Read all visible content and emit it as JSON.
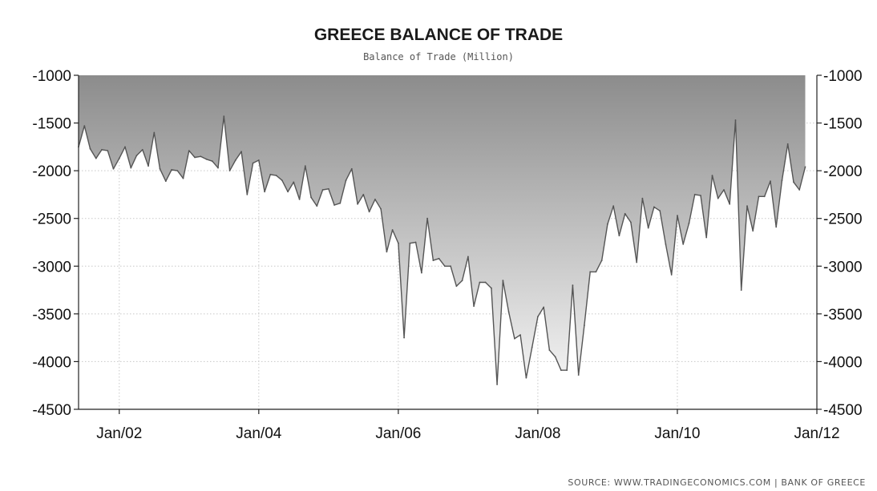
{
  "chart_data": {
    "type": "area",
    "title": "GREECE BALANCE OF TRADE",
    "subtitle": "Balance of Trade (Million)",
    "source": "SOURCE: WWW.TRADINGECONOMICS.COM | BANK OF GREECE",
    "xlabel": "",
    "ylabel": "",
    "ylim": [
      -4500,
      -1000
    ],
    "xlim": [
      "2001-06",
      "2012-01"
    ],
    "x_tick_labels": [
      "Jan/02",
      "Jan/04",
      "Jan/06",
      "Jan/08",
      "Jan/10",
      "Jan/12"
    ],
    "y_tick_values": [
      -1000,
      -1500,
      -2000,
      -2500,
      -3000,
      -3500,
      -4000,
      -4500
    ],
    "grid": true,
    "fill_colors": {
      "top": "#8c8c8c",
      "bottom": "#f4f4f4"
    },
    "line_color": "#555555",
    "series": [
      {
        "points": [
          [
            "2001-06",
            -1750
          ],
          [
            "2001-07",
            -1530
          ],
          [
            "2001-08",
            -1770
          ],
          [
            "2001-09",
            -1870
          ],
          [
            "2001-10",
            -1780
          ],
          [
            "2001-11",
            -1790
          ],
          [
            "2001-12",
            -1980
          ],
          [
            "2002-01",
            -1870
          ],
          [
            "2002-02",
            -1750
          ],
          [
            "2002-03",
            -1970
          ],
          [
            "2002-04",
            -1840
          ],
          [
            "2002-05",
            -1780
          ],
          [
            "2002-06",
            -1950
          ],
          [
            "2002-07",
            -1600
          ],
          [
            "2002-08",
            -1980
          ],
          [
            "2002-09",
            -2110
          ],
          [
            "2002-10",
            -1990
          ],
          [
            "2002-11",
            -2000
          ],
          [
            "2002-12",
            -2080
          ],
          [
            "2003-01",
            -1790
          ],
          [
            "2003-02",
            -1860
          ],
          [
            "2003-03",
            -1850
          ],
          [
            "2003-04",
            -1880
          ],
          [
            "2003-05",
            -1900
          ],
          [
            "2003-06",
            -1970
          ],
          [
            "2003-07",
            -1430
          ],
          [
            "2003-08",
            -2000
          ],
          [
            "2003-09",
            -1890
          ],
          [
            "2003-10",
            -1800
          ],
          [
            "2003-11",
            -2250
          ],
          [
            "2003-12",
            -1920
          ],
          [
            "2004-01",
            -1890
          ],
          [
            "2004-02",
            -2220
          ],
          [
            "2004-03",
            -2040
          ],
          [
            "2004-04",
            -2050
          ],
          [
            "2004-05",
            -2100
          ],
          [
            "2004-06",
            -2220
          ],
          [
            "2004-07",
            -2120
          ],
          [
            "2004-08",
            -2300
          ],
          [
            "2004-09",
            -1950
          ],
          [
            "2004-10",
            -2280
          ],
          [
            "2004-11",
            -2370
          ],
          [
            "2004-12",
            -2200
          ],
          [
            "2005-01",
            -2190
          ],
          [
            "2005-02",
            -2360
          ],
          [
            "2005-03",
            -2340
          ],
          [
            "2005-04",
            -2100
          ],
          [
            "2005-05",
            -1980
          ],
          [
            "2005-06",
            -2350
          ],
          [
            "2005-07",
            -2250
          ],
          [
            "2005-08",
            -2430
          ],
          [
            "2005-09",
            -2300
          ],
          [
            "2005-10",
            -2400
          ],
          [
            "2005-11",
            -2850
          ],
          [
            "2005-12",
            -2620
          ],
          [
            "2006-01",
            -2760
          ],
          [
            "2006-02",
            -3750
          ],
          [
            "2006-03",
            -2760
          ],
          [
            "2006-04",
            -2750
          ],
          [
            "2006-05",
            -3070
          ],
          [
            "2006-06",
            -2500
          ],
          [
            "2006-07",
            -2940
          ],
          [
            "2006-08",
            -2920
          ],
          [
            "2006-09",
            -3000
          ],
          [
            "2006-10",
            -3000
          ],
          [
            "2006-11",
            -3210
          ],
          [
            "2006-12",
            -3150
          ],
          [
            "2007-01",
            -2900
          ],
          [
            "2007-02",
            -3420
          ],
          [
            "2007-03",
            -3170
          ],
          [
            "2007-04",
            -3170
          ],
          [
            "2007-05",
            -3230
          ],
          [
            "2007-06",
            -4240
          ],
          [
            "2007-07",
            -3150
          ],
          [
            "2007-08",
            -3480
          ],
          [
            "2007-09",
            -3760
          ],
          [
            "2007-10",
            -3720
          ],
          [
            "2007-11",
            -4170
          ],
          [
            "2007-12",
            -3850
          ],
          [
            "2008-01",
            -3530
          ],
          [
            "2008-02",
            -3430
          ],
          [
            "2008-03",
            -3880
          ],
          [
            "2008-04",
            -3950
          ],
          [
            "2008-05",
            -4090
          ],
          [
            "2008-06",
            -4090
          ],
          [
            "2008-07",
            -3200
          ],
          [
            "2008-08",
            -4140
          ],
          [
            "2008-09",
            -3620
          ],
          [
            "2008-10",
            -3060
          ],
          [
            "2008-11",
            -3060
          ],
          [
            "2008-12",
            -2940
          ],
          [
            "2009-01",
            -2560
          ],
          [
            "2009-02",
            -2370
          ],
          [
            "2009-03",
            -2680
          ],
          [
            "2009-04",
            -2450
          ],
          [
            "2009-05",
            -2540
          ],
          [
            "2009-06",
            -2960
          ],
          [
            "2009-07",
            -2290
          ],
          [
            "2009-08",
            -2600
          ],
          [
            "2009-09",
            -2380
          ],
          [
            "2009-10",
            -2420
          ],
          [
            "2009-11",
            -2770
          ],
          [
            "2009-12",
            -3090
          ],
          [
            "2010-01",
            -2470
          ],
          [
            "2010-02",
            -2770
          ],
          [
            "2010-03",
            -2550
          ],
          [
            "2010-04",
            -2250
          ],
          [
            "2010-05",
            -2260
          ],
          [
            "2010-06",
            -2700
          ],
          [
            "2010-07",
            -2050
          ],
          [
            "2010-08",
            -2290
          ],
          [
            "2010-09",
            -2200
          ],
          [
            "2010-10",
            -2350
          ],
          [
            "2010-11",
            -1470
          ],
          [
            "2010-12",
            -3250
          ],
          [
            "2011-01",
            -2370
          ],
          [
            "2011-02",
            -2630
          ],
          [
            "2011-03",
            -2270
          ],
          [
            "2011-04",
            -2270
          ],
          [
            "2011-05",
            -2110
          ],
          [
            "2011-06",
            -2590
          ],
          [
            "2011-07",
            -2100
          ],
          [
            "2011-08",
            -1720
          ],
          [
            "2011-09",
            -2120
          ],
          [
            "2011-10",
            -2200
          ],
          [
            "2011-11",
            -1960
          ]
        ]
      }
    ]
  }
}
